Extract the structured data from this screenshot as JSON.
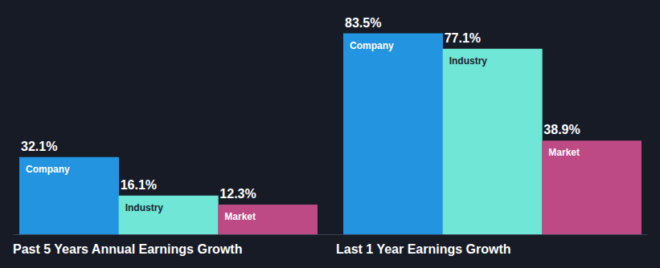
{
  "chart_data": [
    {
      "type": "bar",
      "title": "Past 5 Years Annual Earnings Growth",
      "categories": [
        "Company",
        "Industry",
        "Market"
      ],
      "values": [
        32.1,
        16.1,
        12.3
      ],
      "value_labels": [
        "32.1%",
        "16.1%",
        "12.3%"
      ],
      "colors": [
        "#2394df",
        "#6fe6d6",
        "#bd4a85"
      ],
      "ylim": [
        0,
        90
      ],
      "data_labels": true,
      "tick_labels": false
    },
    {
      "type": "bar",
      "title": "Last 1 Year Earnings Growth",
      "categories": [
        "Company",
        "Industry",
        "Market"
      ],
      "values": [
        83.5,
        77.1,
        38.9
      ],
      "value_labels": [
        "83.5%",
        "77.1%",
        "38.9%"
      ],
      "colors": [
        "#2394df",
        "#6fe6d6",
        "#bd4a85"
      ],
      "ylim": [
        0,
        90
      ],
      "data_labels": true,
      "tick_labels": false
    }
  ]
}
